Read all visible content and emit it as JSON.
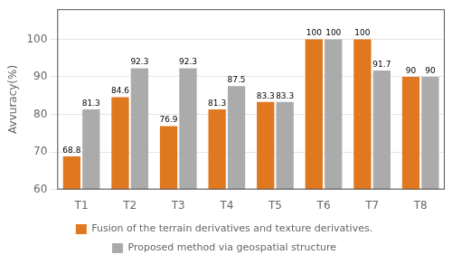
{
  "chart_data": {
    "type": "bar",
    "categories": [
      "T1",
      "T2",
      "T3",
      "T4",
      "T5",
      "T6",
      "T7",
      "T8"
    ],
    "series": [
      {
        "name": "Fusion of the terrain derivatives and texture derivatives.",
        "color": "#E07820",
        "values": [
          68.8,
          84.6,
          76.9,
          81.3,
          83.3,
          100,
          100,
          90
        ]
      },
      {
        "name": "Proposed method via geospatial structure",
        "color": "#ABABAB",
        "values": [
          81.3,
          92.3,
          92.3,
          87.5,
          83.3,
          100,
          91.7,
          90
        ]
      }
    ],
    "ylabel": "Avvuracy(%)",
    "ylim": [
      60,
      108
    ],
    "yticks": [
      60,
      70,
      80,
      90,
      100
    ],
    "grid": true,
    "legend": "bottom",
    "data_labels": true
  }
}
